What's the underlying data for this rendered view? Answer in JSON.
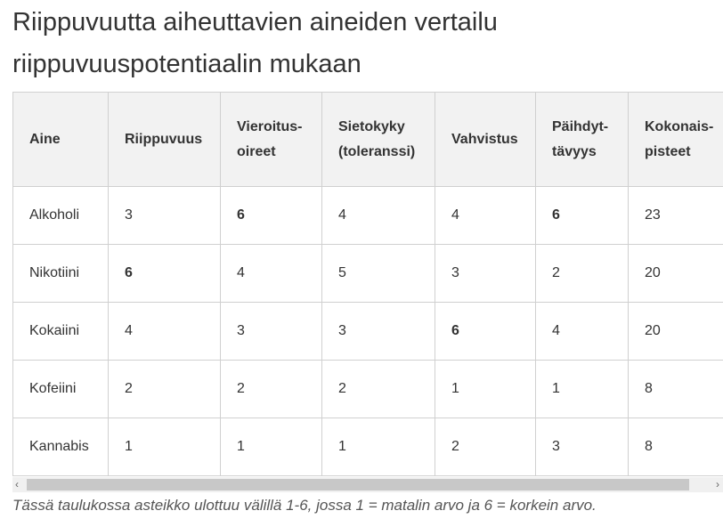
{
  "title": "Riippuvuutta aiheuttavien aineiden vertailu riippuvuuspotentiaalin mukaan",
  "table": {
    "header": [
      "Aine",
      "Riippuvuus",
      "Vieroitus-oireet",
      "Sietokyky (toleranssi)",
      "Vahvistus",
      "Päihdyt-tävyys",
      "Kokonais-pisteet"
    ],
    "rows": [
      [
        "Alkoholi",
        3,
        6,
        4,
        4,
        6,
        23
      ],
      [
        "Nikotiini",
        6,
        4,
        5,
        3,
        2,
        20
      ],
      [
        "Kokaiini",
        4,
        3,
        3,
        6,
        4,
        20
      ],
      [
        "Kofeiini",
        2,
        2,
        2,
        1,
        1,
        8
      ],
      [
        "Kannabis",
        1,
        1,
        1,
        2,
        3,
        8
      ]
    ]
  },
  "caption": "Tässä taulukossa asteikko ulottuu välillä 1-6, jossa 1 = matalin arvo ja 6 = korkein arvo."
}
